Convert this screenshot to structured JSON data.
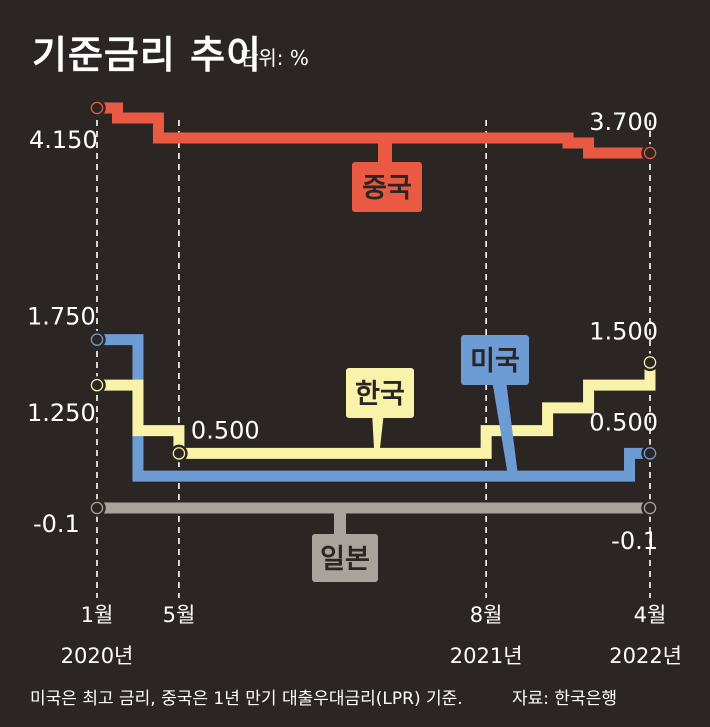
{
  "header": {
    "title": "기준금리 추이",
    "unit": "단위: %"
  },
  "footer": {
    "note": "미국은 최고 금리, 중국은 1년 만기 대출우대금리(LPR) 기준.",
    "source": "자료: 한국은행"
  },
  "colors": {
    "background": "#2b2623",
    "china": "#ea5a42",
    "us": "#6d9bd3",
    "korea": "#f9f3a9",
    "japan": "#a8a49d",
    "guide": "#ffffff"
  },
  "chart_data": {
    "type": "line",
    "line_shape": "step",
    "title": "기준금리 추이",
    "unit": "단위: %",
    "x_axis": {
      "range": [
        "2020-01",
        "2022-04"
      ],
      "ticks": [
        {
          "date": "2020-01",
          "month": "1월",
          "year": "2020년"
        },
        {
          "date": "2020-05",
          "month": "5월",
          "year": ""
        },
        {
          "date": "2021-08",
          "month": "8월",
          "year": "2021년"
        },
        {
          "date": "2022-04",
          "month": "4월",
          "year": "2022년"
        }
      ]
    },
    "series": [
      {
        "name": "중국",
        "key": "china",
        "points": [
          {
            "x": "2020-01",
            "y": 4.15
          },
          {
            "x": "2020-02",
            "y": 4.05
          },
          {
            "x": "2020-04",
            "y": 3.85
          },
          {
            "x": "2021-12",
            "y": 3.8
          },
          {
            "x": "2022-01",
            "y": 3.7
          },
          {
            "x": "2022-04",
            "y": 3.7
          }
        ],
        "labels": [
          {
            "x": "2020-01",
            "y": 4.15,
            "text": "4.150",
            "pos": "left"
          },
          {
            "x": "2022-04",
            "y": 3.7,
            "text": "3.700",
            "pos": "top-left"
          }
        ]
      },
      {
        "name": "미국",
        "key": "us",
        "points": [
          {
            "x": "2020-01",
            "y": 1.75
          },
          {
            "x": "2020-03",
            "y": 1.25
          },
          {
            "x": "2020-03",
            "y": 0.25
          },
          {
            "x": "2022-03",
            "y": 0.25
          },
          {
            "x": "2022-03",
            "y": 0.5
          },
          {
            "x": "2022-04",
            "y": 0.5
          }
        ],
        "labels": [
          {
            "x": "2020-01",
            "y": 1.75,
            "text": "1.750",
            "pos": "left-up"
          },
          {
            "x": "2022-04",
            "y": 0.5,
            "text": "0.500",
            "pos": "top-left"
          }
        ]
      },
      {
        "name": "한국",
        "key": "korea",
        "points": [
          {
            "x": "2020-01",
            "y": 1.25
          },
          {
            "x": "2020-03",
            "y": 0.75
          },
          {
            "x": "2020-05",
            "y": 0.5
          },
          {
            "x": "2021-08",
            "y": 0.75
          },
          {
            "x": "2021-11",
            "y": 1.0
          },
          {
            "x": "2022-01",
            "y": 1.25
          },
          {
            "x": "2022-04",
            "y": 1.5
          }
        ],
        "labels": [
          {
            "x": "2020-01",
            "y": 1.25,
            "text": "1.250",
            "pos": "left-down"
          },
          {
            "x": "2020-05",
            "y": 0.5,
            "text": "0.500",
            "pos": "right-up"
          },
          {
            "x": "2022-04",
            "y": 1.5,
            "text": "1.500",
            "pos": "top-left"
          }
        ]
      },
      {
        "name": "일본",
        "key": "japan",
        "points": [
          {
            "x": "2020-01",
            "y": -0.1
          },
          {
            "x": "2022-04",
            "y": -0.1
          }
        ],
        "labels": [
          {
            "x": "2020-01",
            "y": -0.1,
            "text": "-0.1",
            "pos": "left"
          },
          {
            "x": "2022-04",
            "y": -0.1,
            "text": "-0.1",
            "pos": "below-left"
          }
        ]
      }
    ]
  }
}
